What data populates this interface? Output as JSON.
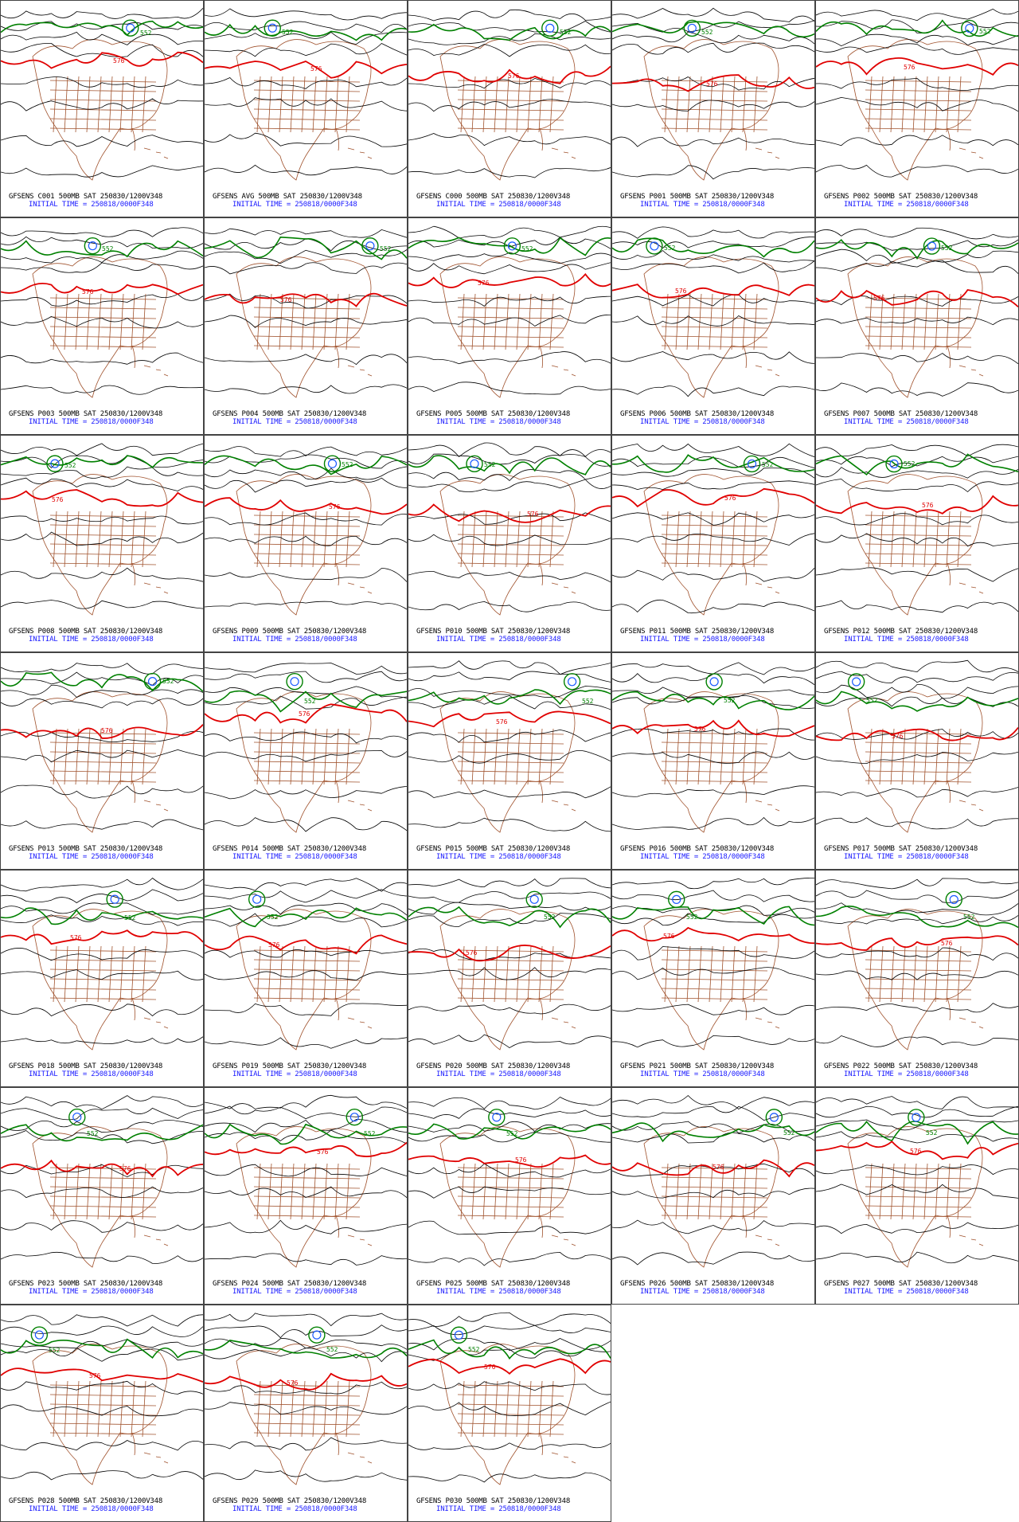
{
  "figure": {
    "valid_label": "500MB SAT 250830/1200V348",
    "initial_time": "INITIAL TIME = 250818/0000F348",
    "contour_colors": {
      "contour": "#000000",
      "ridge_576": "#e00000",
      "trough_552": "#008000",
      "low_core": "#1a5aff",
      "map_outline": "#a0522d"
    },
    "contour_labels": {
      "red": "576",
      "green": "552"
    }
  },
  "panels": [
    {
      "member": "GFSENS C001",
      "title": "GFSENS C001 500MB SAT 250830/1200V348",
      "init": "INITIAL TIME = 250818/0000F348"
    },
    {
      "member": "GFSENS AVG",
      "title": "GFSENS AVG 500MB SAT 250830/1200V348",
      "init": "INITIAL TIME = 250818/0000F348"
    },
    {
      "member": "GFSENS C000",
      "title": "GFSENS C000 500MB SAT 250830/1200V348",
      "init": "INITIAL TIME = 250818/0000F348"
    },
    {
      "member": "GFSENS P001",
      "title": "GFSENS P001 500MB SAT 250830/1200V348",
      "init": "INITIAL TIME = 250818/0000F348"
    },
    {
      "member": "GFSENS P002",
      "title": "GFSENS P002 500MB SAT 250830/1200V348",
      "init": "INITIAL TIME = 250818/0000F348"
    },
    {
      "member": "GFSENS P003",
      "title": "GFSENS P003 500MB SAT 250830/1200V348",
      "init": "INITIAL TIME = 250818/0000F348"
    },
    {
      "member": "GFSENS P004",
      "title": "GFSENS P004 500MB SAT 250830/1200V348",
      "init": "INITIAL TIME = 250818/0000F348"
    },
    {
      "member": "GFSENS P005",
      "title": "GFSENS P005 500MB SAT 250830/1200V348",
      "init": "INITIAL TIME = 250818/0000F348"
    },
    {
      "member": "GFSENS P006",
      "title": "GFSENS P006 500MB SAT 250830/1200V348",
      "init": "INITIAL TIME = 250818/0000F348"
    },
    {
      "member": "GFSENS P007",
      "title": "GFSENS P007 500MB SAT 250830/1200V348",
      "init": "INITIAL TIME = 250818/0000F348"
    },
    {
      "member": "GFSENS P008",
      "title": "GFSENS P008 500MB SAT 250830/1200V348",
      "init": "INITIAL TIME = 250818/0000F348"
    },
    {
      "member": "GFSENS P009",
      "title": "GFSENS P009 500MB SAT 250830/1200V348",
      "init": "INITIAL TIME = 250818/0000F348"
    },
    {
      "member": "GFSENS P010",
      "title": "GFSENS P010 500MB SAT 250830/1200V348",
      "init": "INITIAL TIME = 250818/0000F348"
    },
    {
      "member": "GFSENS P011",
      "title": "GFSENS P011 500MB SAT 250830/1200V348",
      "init": "INITIAL TIME = 250818/0000F348"
    },
    {
      "member": "GFSENS P012",
      "title": "GFSENS P012 500MB SAT 250830/1200V348",
      "init": "INITIAL TIME = 250818/0000F348"
    },
    {
      "member": "GFSENS P013",
      "title": "GFSENS P013 500MB SAT 250830/1200V348",
      "init": "INITIAL TIME = 250818/0000F348"
    },
    {
      "member": "GFSENS P014",
      "title": "GFSENS P014 500MB SAT 250830/1200V348",
      "init": "INITIAL TIME = 250818/0000F348"
    },
    {
      "member": "GFSENS P015",
      "title": "GFSENS P015 500MB SAT 250830/1200V348",
      "init": "INITIAL TIME = 250818/0000F348"
    },
    {
      "member": "GFSENS P016",
      "title": "GFSENS P016 500MB SAT 250830/1200V348",
      "init": "INITIAL TIME = 250818/0000F348"
    },
    {
      "member": "GFSENS P017",
      "title": "GFSENS P017 500MB SAT 250830/1200V348",
      "init": "INITIAL TIME = 250818/0000F348"
    },
    {
      "member": "GFSENS P018",
      "title": "GFSENS P018 500MB SAT 250830/1200V348",
      "init": "INITIAL TIME = 250818/0000F348"
    },
    {
      "member": "GFSENS P019",
      "title": "GFSENS P019 500MB SAT 250830/1200V348",
      "init": "INITIAL TIME = 250818/0000F348"
    },
    {
      "member": "GFSENS P020",
      "title": "GFSENS P020 500MB SAT 250830/1200V348",
      "init": "INITIAL TIME = 250818/0000F348"
    },
    {
      "member": "GFSENS P021",
      "title": "GFSENS P021 500MB SAT 250830/1200V348",
      "init": "INITIAL TIME = 250818/0000F348"
    },
    {
      "member": "GFSENS P022",
      "title": "GFSENS P022 500MB SAT 250830/1200V348",
      "init": "INITIAL TIME = 250818/0000F348"
    },
    {
      "member": "GFSENS P023",
      "title": "GFSENS P023 500MB SAT 250830/1200V348",
      "init": "INITIAL TIME = 250818/0000F348"
    },
    {
      "member": "GFSENS P024",
      "title": "GFSENS P024 500MB SAT 250830/1200V348",
      "init": "INITIAL TIME = 250818/0000F348"
    },
    {
      "member": "GFSENS P025",
      "title": "GFSENS P025 500MB SAT 250830/1200V348",
      "init": "INITIAL TIME = 250818/0000F348"
    },
    {
      "member": "GFSENS P026",
      "title": "GFSENS P026 500MB SAT 250830/1200V348",
      "init": "INITIAL TIME = 250818/0000F348"
    },
    {
      "member": "GFSENS P027",
      "title": "GFSENS P027 500MB SAT 250830/1200V348",
      "init": "INITIAL TIME = 250818/0000F348"
    },
    {
      "member": "GFSENS P028",
      "title": "GFSENS P028 500MB SAT 250830/1200V348",
      "init": "INITIAL TIME = 250818/0000F348"
    },
    {
      "member": "GFSENS P029",
      "title": "GFSENS P029 500MB SAT 250830/1200V348",
      "init": "INITIAL TIME = 250818/0000F348"
    },
    {
      "member": "GFSENS P030",
      "title": "GFSENS P030 500MB SAT 250830/1200V348",
      "init": "INITIAL TIME = 250818/0000F348"
    }
  ]
}
